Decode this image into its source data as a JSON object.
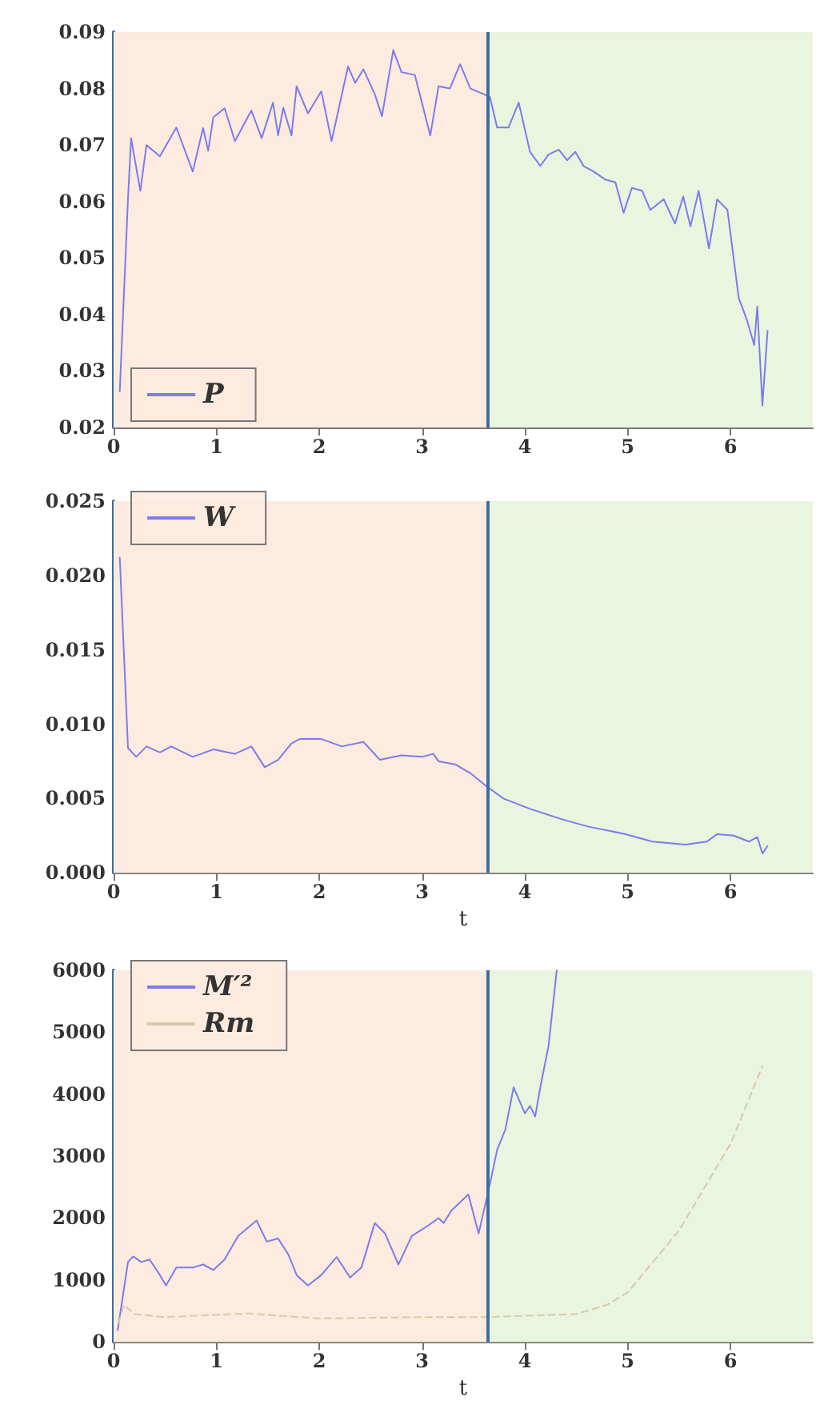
{
  "chart_data": [
    {
      "type": "line",
      "xlim": [
        0,
        6.8
      ],
      "xticks": [
        0,
        1,
        2,
        3,
        4,
        5,
        6
      ],
      "ylim": [
        0.02,
        0.09
      ],
      "yticks": [
        0.02,
        0.03,
        0.04,
        0.05,
        0.06,
        0.07,
        0.08,
        0.09
      ],
      "legend": "bottom left",
      "marker": "none",
      "ref_lines": [
        {
          "axis": "x",
          "value": 3.63,
          "color": "#3b6ea5"
        }
      ],
      "bands": [
        {
          "axis": "x",
          "from": 0,
          "to": 3.63,
          "color": "#fdebdf"
        },
        {
          "axis": "x",
          "from": 3.63,
          "to": 6.8,
          "color": "#e9f5df"
        }
      ],
      "series": [
        {
          "name": "P",
          "color": "#7b7bee",
          "line_style": "solid",
          "x": [
            0.06,
            0.14,
            0.17,
            0.26,
            0.32,
            0.45,
            0.61,
            0.77,
            0.87,
            0.92,
            0.97,
            1.08,
            1.18,
            1.34,
            1.44,
            1.55,
            1.6,
            1.65,
            1.73,
            1.78,
            1.89,
            2.02,
            2.12,
            2.28,
            2.35,
            2.43,
            2.54,
            2.61,
            2.72,
            2.8,
            2.93,
            3.08,
            3.16,
            3.27,
            3.37,
            3.47,
            3.6,
            3.66,
            3.73,
            3.84,
            3.94,
            4.05,
            4.15,
            4.23,
            4.33,
            4.41,
            4.49,
            4.57,
            4.67,
            4.78,
            4.88,
            4.96,
            5.04,
            5.14,
            5.22,
            5.35,
            5.46,
            5.54,
            5.61,
            5.69,
            5.79,
            5.87,
            5.97,
            6.08,
            6.16,
            6.23,
            6.26,
            6.31,
            6.36
          ],
          "values": [
            0.0264,
            0.0605,
            0.0712,
            0.0619,
            0.07,
            0.068,
            0.0731,
            0.0653,
            0.073,
            0.069,
            0.0749,
            0.0765,
            0.0707,
            0.0761,
            0.0712,
            0.0775,
            0.0717,
            0.0766,
            0.0717,
            0.0804,
            0.0756,
            0.0795,
            0.0707,
            0.0839,
            0.081,
            0.0834,
            0.079,
            0.0751,
            0.0868,
            0.0829,
            0.0824,
            0.0717,
            0.0804,
            0.08,
            0.0843,
            0.08,
            0.079,
            0.0785,
            0.0731,
            0.0731,
            0.0775,
            0.0688,
            0.0663,
            0.0683,
            0.0692,
            0.0673,
            0.0688,
            0.0663,
            0.0653,
            0.0639,
            0.0634,
            0.058,
            0.0624,
            0.0619,
            0.0585,
            0.0604,
            0.0561,
            0.0609,
            0.0556,
            0.0619,
            0.0517,
            0.0604,
            0.0585,
            0.0429,
            0.039,
            0.0346,
            0.0414,
            0.0239,
            0.0371
          ]
        }
      ]
    },
    {
      "type": "line",
      "xlabel": "t",
      "xlim": [
        0,
        6.8
      ],
      "xticks": [
        0,
        1,
        2,
        3,
        4,
        5,
        6
      ],
      "ylim": [
        0,
        0.025
      ],
      "yticks": [
        {
          "value": 0,
          "label": "0.000"
        },
        {
          "value": 0.005,
          "label": "0.005"
        },
        {
          "value": 0.01,
          "label": "0.010"
        },
        {
          "value": 0.015,
          "label": "0.015"
        },
        {
          "value": 0.02,
          "label": "0.020"
        },
        {
          "value": 0.025,
          "label": "0.025"
        }
      ],
      "legend": "top left",
      "marker": "none",
      "ref_lines": [
        {
          "axis": "x",
          "value": 3.63,
          "color": "#3b6ea5"
        }
      ],
      "bands": [
        {
          "axis": "x",
          "from": 0,
          "to": 3.63,
          "color": "#fdebdf"
        },
        {
          "axis": "x",
          "from": 3.63,
          "to": 6.8,
          "color": "#e9f5df"
        }
      ],
      "series": [
        {
          "name": "W",
          "color": "#7b7bee",
          "line_style": "solid",
          "x": [
            0.06,
            0.14,
            0.22,
            0.32,
            0.45,
            0.56,
            0.77,
            0.97,
            1.18,
            1.34,
            1.47,
            1.6,
            1.73,
            1.81,
            2.02,
            2.22,
            2.43,
            2.59,
            2.8,
            3.0,
            3.11,
            3.16,
            3.32,
            3.47,
            3.63,
            3.79,
            4.05,
            4.36,
            4.62,
            4.98,
            5.24,
            5.56,
            5.77,
            5.87,
            6.03,
            6.18,
            6.26,
            6.31,
            6.36
          ],
          "values": [
            0.0212,
            0.0084,
            0.0078,
            0.0085,
            0.0081,
            0.0085,
            0.0078,
            0.0083,
            0.008,
            0.0085,
            0.0071,
            0.0076,
            0.0087,
            0.009,
            0.009,
            0.0085,
            0.0088,
            0.0076,
            0.0079,
            0.0078,
            0.008,
            0.0075,
            0.0073,
            0.0067,
            0.0058,
            0.005,
            0.0043,
            0.0036,
            0.0031,
            0.0026,
            0.0021,
            0.0019,
            0.0021,
            0.0026,
            0.0025,
            0.0021,
            0.0024,
            0.0013,
            0.0018
          ]
        }
      ]
    },
    {
      "type": "line",
      "xlabel": "t",
      "xlim": [
        0,
        6.8
      ],
      "xticks": [
        0,
        1,
        2,
        3,
        4,
        5,
        6
      ],
      "ylim": [
        0,
        6000
      ],
      "yticks": [
        0,
        1000,
        2000,
        3000,
        4000,
        5000,
        6000
      ],
      "legend": "top left",
      "marker": "none",
      "ref_lines": [
        {
          "axis": "x",
          "value": 3.63,
          "color": "#3b6ea5"
        }
      ],
      "bands": [
        {
          "axis": "x",
          "from": 0,
          "to": 3.63,
          "color": "#fdebdf"
        },
        {
          "axis": "x",
          "from": 3.63,
          "to": 6.8,
          "color": "#e9f5df"
        }
      ],
      "series": [
        {
          "name": "M′²",
          "color": "#7b7bee",
          "line_style": "solid",
          "x": [
            0.04,
            0.14,
            0.19,
            0.27,
            0.35,
            0.45,
            0.51,
            0.61,
            0.77,
            0.87,
            0.97,
            1.08,
            1.21,
            1.39,
            1.49,
            1.6,
            1.7,
            1.78,
            1.89,
            2.02,
            2.17,
            2.3,
            2.41,
            2.54,
            2.64,
            2.77,
            2.9,
            3.06,
            3.16,
            3.21,
            3.29,
            3.45,
            3.55,
            3.66,
            3.73,
            3.81,
            3.89,
            4.0,
            4.05,
            4.1,
            4.15,
            4.23,
            4.31
          ],
          "values": [
            190,
            1290,
            1380,
            1290,
            1330,
            1080,
            910,
            1200,
            1200,
            1250,
            1160,
            1330,
            1710,
            1960,
            1620,
            1670,
            1410,
            1080,
            910,
            1080,
            1370,
            1040,
            1200,
            1920,
            1750,
            1250,
            1710,
            1880,
            2000,
            1920,
            2130,
            2380,
            1750,
            2550,
            3100,
            3430,
            4110,
            3690,
            3810,
            3640,
            4110,
            4780,
            6000
          ]
        },
        {
          "name": "Rm",
          "color": "#d9c9a8",
          "line_style": "dashed",
          "x": [
            0.05,
            0.1,
            0.2,
            0.5,
            1.3,
            2.0,
            3.0,
            3.6,
            4.5,
            4.8,
            5.0,
            5.5,
            6.0,
            6.31
          ],
          "values": [
            300,
            600,
            450,
            400,
            460,
            380,
            400,
            400,
            450,
            600,
            800,
            1800,
            3200,
            4450
          ]
        }
      ]
    }
  ]
}
